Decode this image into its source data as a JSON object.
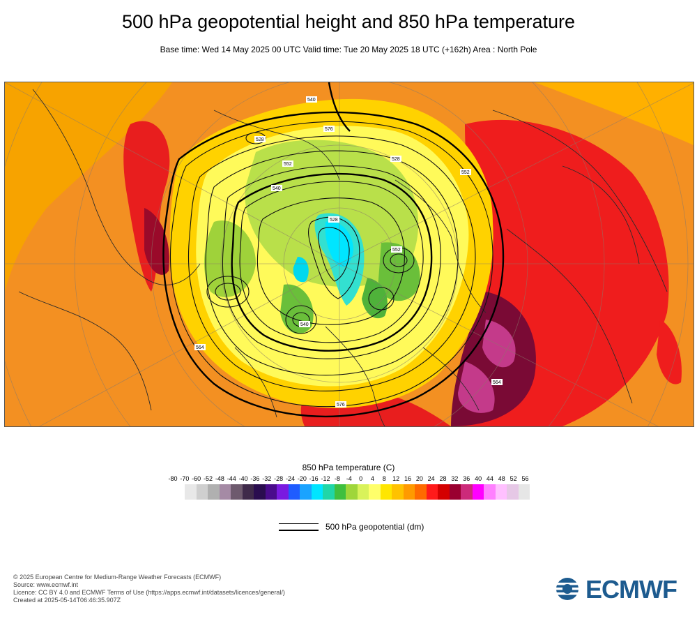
{
  "header": {
    "title": "500 hPa geopotential height and 850 hPa temperature",
    "subtitle": "Base time: Wed 14 May 2025 00 UTC Valid time: Tue 20 May 2025 18 UTC (+162h) Area : North Pole"
  },
  "map": {
    "contour_labels": [
      "576",
      "552",
      "528",
      "552",
      "528",
      "540",
      "564",
      "540",
      "528",
      "576",
      "552",
      "564",
      "540"
    ]
  },
  "legend": {
    "title": "850 hPa temperature (C)",
    "ticks": [
      "-80",
      "-70",
      "-60",
      "-52",
      "-48",
      "-44",
      "-40",
      "-36",
      "-32",
      "-28",
      "-24",
      "-20",
      "-16",
      "-12",
      "-8",
      "-4",
      "0",
      "4",
      "8",
      "12",
      "16",
      "20",
      "24",
      "28",
      "32",
      "36",
      "40",
      "44",
      "48",
      "52",
      "56"
    ],
    "colors": [
      "#e8e8e8",
      "#cfcfcf",
      "#b0b0b0",
      "#a58aa5",
      "#6e5a6e",
      "#3f2a4a",
      "#2a0d4f",
      "#4a0c8c",
      "#7a1ae0",
      "#1f5cff",
      "#1aa3ff",
      "#00e5ff",
      "#20d6a8",
      "#3fbf3f",
      "#9fd63a",
      "#d9f25a",
      "#ffff6a",
      "#ffe600",
      "#ffc200",
      "#ff9a00",
      "#ff6a00",
      "#ff1a1a",
      "#d40000",
      "#9a0030",
      "#cc2a7a",
      "#ff00ff",
      "#ff80ff",
      "#ffc0ff",
      "#e6c8e6",
      "#e6e6e6"
    ],
    "contour_key_label": "500 hPa geopotential (dm)"
  },
  "credits": {
    "line1": "© 2025 European Centre for Medium-Range Weather Forecasts (ECMWF)",
    "line2": "Source: www.ecmwf.int",
    "line3": "Licence: CC BY 4.0 and ECMWF Terms of Use (https://apps.ecmwf.int/datasets/licences/general/)",
    "line4": "Created at 2025-05-14T06:46:35.907Z"
  },
  "logo": {
    "text": "ECMWF",
    "color": "#1d5b8f"
  }
}
